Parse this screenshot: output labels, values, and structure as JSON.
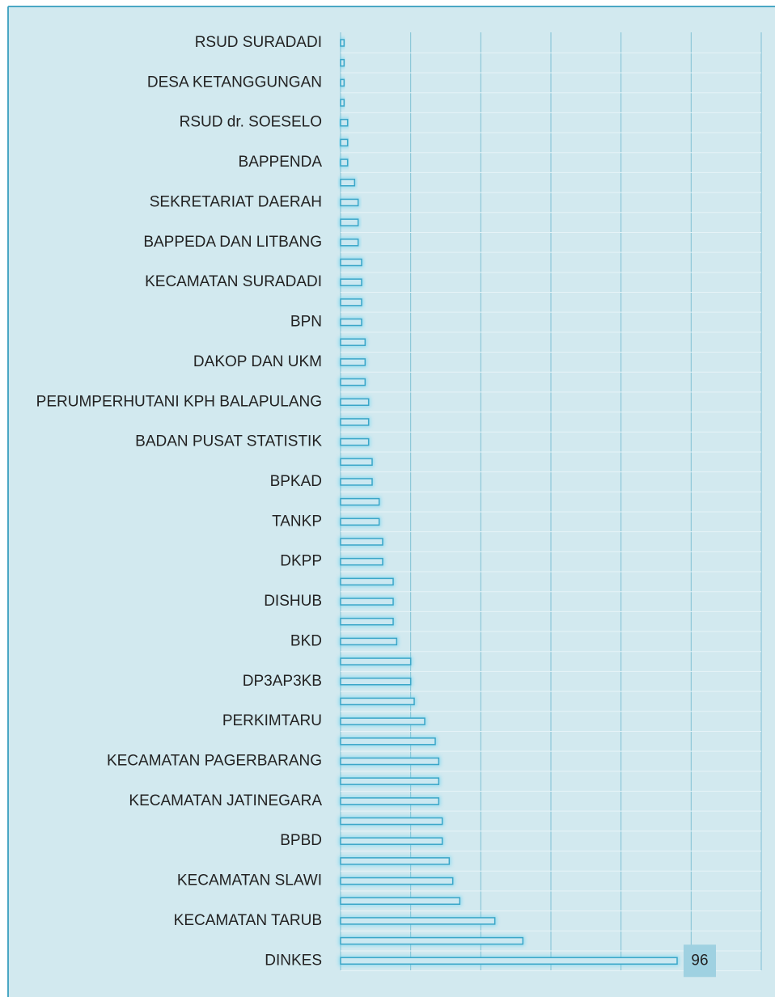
{
  "chart_data": {
    "type": "barh",
    "categories": [
      "RSUD SURADADI",
      null,
      "DESA KETANGGUNGAN",
      null,
      "RSUD dr. SOESELO",
      null,
      "BAPPENDA",
      null,
      "SEKRETARIAT DAERAH",
      null,
      "BAPPEDA DAN LITBANG",
      null,
      "KECAMATAN SURADADI",
      null,
      "BPN",
      null,
      "DAKOP DAN UKM",
      null,
      "PERUMPERHUTANI KPH BALAPULANG",
      null,
      "BADAN PUSAT STATISTIK",
      null,
      "BPKAD",
      null,
      "TANKP",
      null,
      "DKPP",
      null,
      "DISHUB",
      null,
      "BKD",
      null,
      "DP3AP3KB",
      null,
      "PERKIMTARU",
      null,
      "KECAMATAN PAGERBARANG",
      null,
      "KECAMATAN JATINEGARA",
      null,
      "BPBD",
      null,
      "KECAMATAN SLAWI",
      null,
      "KECAMATAN TARUB",
      null,
      "DINKES"
    ],
    "values": [
      1,
      1,
      1,
      1,
      2,
      2,
      2,
      4,
      5,
      5,
      5,
      6,
      6,
      6,
      6,
      7,
      7,
      7,
      8,
      8,
      8,
      9,
      9,
      11,
      11,
      12,
      12,
      15,
      15,
      15,
      16,
      20,
      20,
      21,
      24,
      27,
      28,
      28,
      28,
      29,
      29,
      31,
      32,
      34,
      44,
      52,
      96
    ],
    "color": "#3aa6c8",
    "xlim": [
      0,
      120
    ],
    "xticks": [
      0,
      20,
      40,
      60,
      80,
      100,
      120
    ],
    "grid": true
  }
}
